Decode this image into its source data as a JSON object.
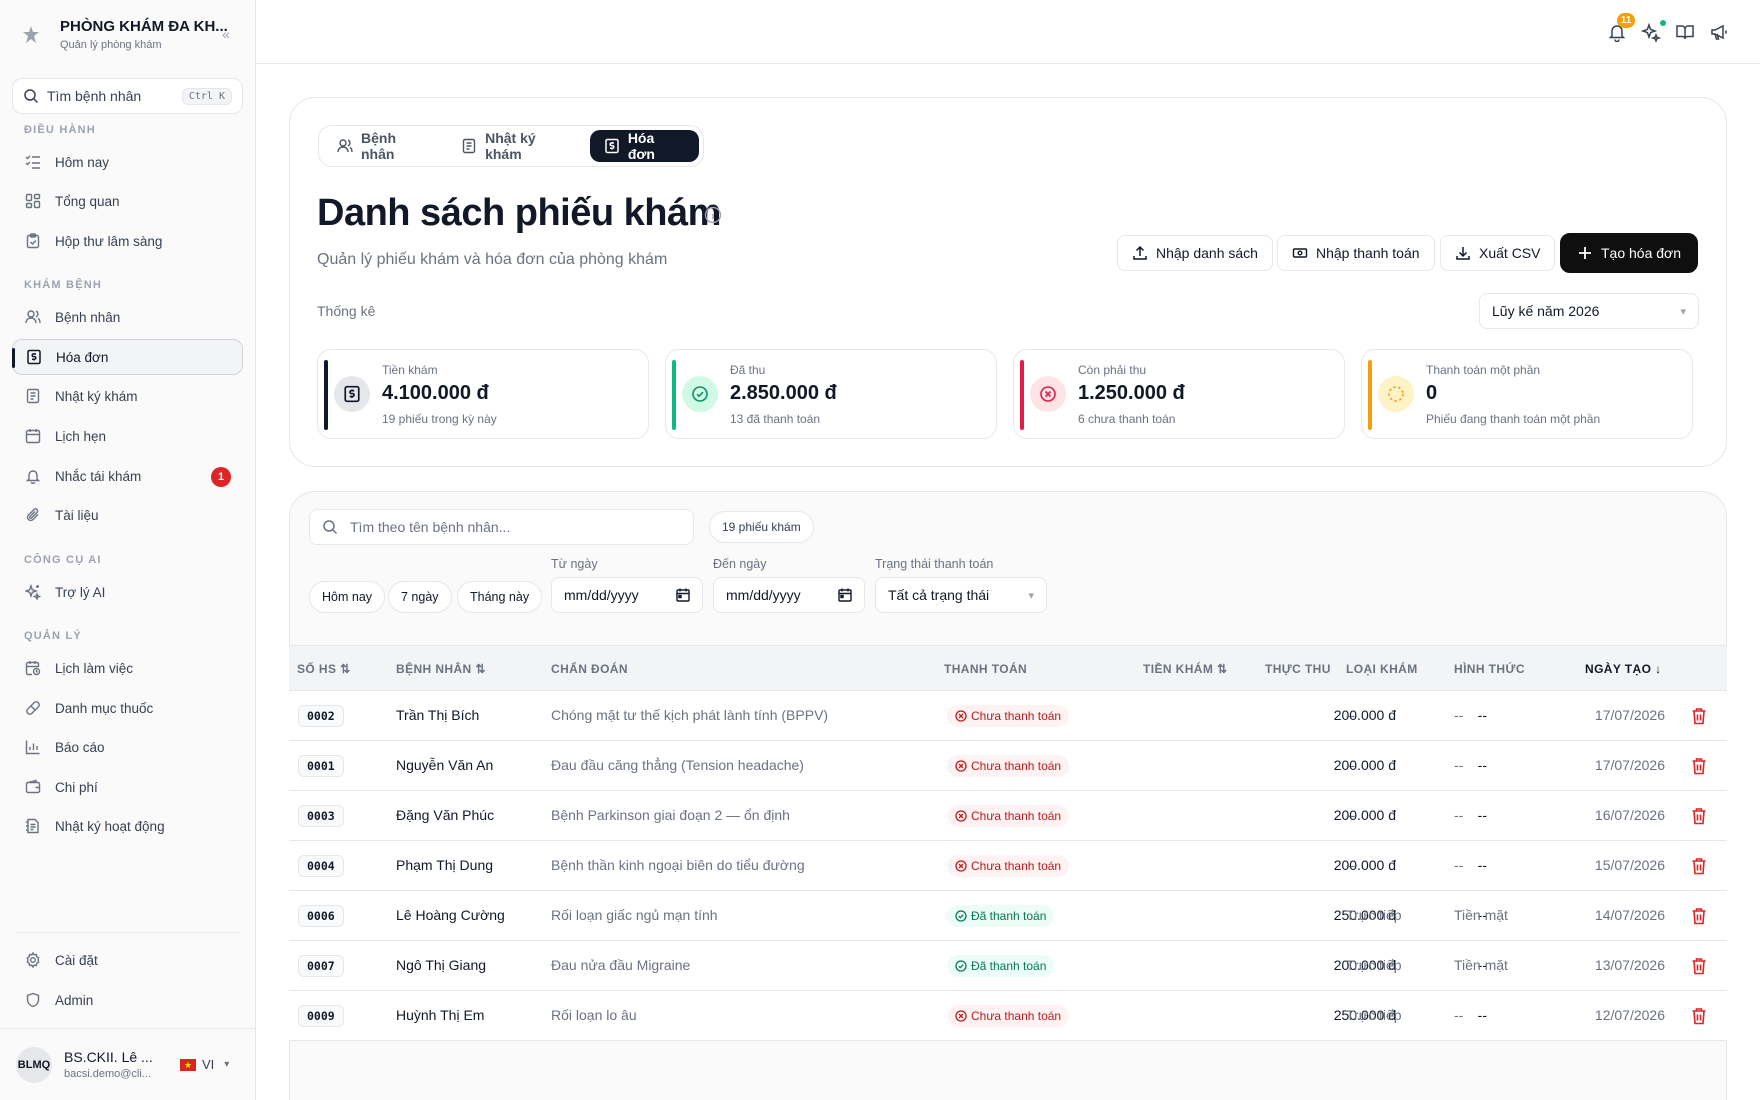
{
  "sidebar": {
    "brand_name": "PHÒNG KHÁM ĐA KH...",
    "brand_sub": "Quản lý phòng khám",
    "search_label": "Tìm bệnh nhân",
    "search_kbd": "Ctrl K",
    "sections": {
      "dieu_hanh": "ĐIỀU HÀNH",
      "kham_benh": "KHÁM BỆNH",
      "cong_cu_ai": "CÔNG CỤ AI",
      "quan_ly": "QUẢN LÝ"
    },
    "items": {
      "hom_nay": "Hôm nay",
      "tong_quan": "Tổng quan",
      "hop_thu": "Hộp thư lâm sàng",
      "benh_nhan": "Bệnh nhân",
      "hoa_don": "Hóa đơn",
      "nhat_ky_kham": "Nhật ký khám",
      "lich_hen": "Lịch hẹn",
      "nhac_tai_kham": "Nhắc tái khám",
      "nhac_tai_kham_badge": "1",
      "tai_lieu": "Tài liệu",
      "tro_ly_ai": "Trợ lý AI",
      "lich_lam_viec": "Lịch làm việc",
      "danh_muc_thuoc": "Danh mục thuốc",
      "bao_cao": "Báo cáo",
      "chi_phi": "Chi phí",
      "nhat_ky_hoat_dong": "Nhật ký hoạt động",
      "cai_dat": "Cài đặt",
      "admin": "Admin"
    },
    "user": {
      "initials": "BLMQ",
      "name": "BS.CKII. Lê ...",
      "email": "bacsi.demo@cli...",
      "lang": "VI"
    }
  },
  "topbar": {
    "notif_count": "11"
  },
  "header": {
    "tabs": [
      "Bệnh nhân",
      "Nhật ký khám",
      "Hóa đơn"
    ],
    "title": "Danh sách phiếu khám",
    "subtitle": "Quản lý phiếu khám và hóa đơn của phòng khám",
    "buttons": {
      "import_list": "Nhập danh sách",
      "import_payment": "Nhập thanh toán",
      "export_csv": "Xuất CSV",
      "create_invoice": "Tạo hóa đơn"
    },
    "stats_heading": "Thống kê",
    "period": "Lũy kế năm 2026"
  },
  "stats": [
    {
      "label": "Tiền khám",
      "value": "4.100.000 đ",
      "note": "19 phiếu trong kỳ này",
      "color": "#111827"
    },
    {
      "label": "Đã thu",
      "value": "2.850.000 đ",
      "note": "13 đã thanh toán",
      "color": "#10b981"
    },
    {
      "label": "Còn phải thu",
      "value": "1.250.000 đ",
      "note": "6 chưa thanh toán",
      "color": "#e11d48"
    },
    {
      "label": "Thanh toán một phần",
      "value": "0",
      "note": "Phiếu đang thanh toán một phần",
      "color": "#f59e0b"
    }
  ],
  "filters": {
    "search_placeholder": "Tìm theo tên bệnh nhân...",
    "count": "19 phiếu khám",
    "chips": [
      "Hôm nay",
      "7 ngày",
      "Tháng này"
    ],
    "from_label": "Từ ngày",
    "to_label": "Đến ngày",
    "date_placeholder": "mm/dd/yyyy",
    "status_label": "Trạng thái thanh toán",
    "status_value": "Tất cả trạng thái"
  },
  "table": {
    "headers": {
      "so_hs": "SỐ HS",
      "benh_nhan": "BỆNH NHÂN",
      "chan_doan": "CHẨN ĐOÁN",
      "thanh_toan": "THANH TOÁN",
      "tien_kham": "TIỀN KHÁM",
      "thuc_thu": "THỰC THU",
      "loai_kham": "LOẠI KHÁM",
      "hinh_thuc": "HÌNH THỨC",
      "ngay_tao": "NGÀY TẠO"
    },
    "rows": [
      {
        "code": "0002",
        "patient": "Trần Thị Bích",
        "diagnosis": "Chóng mặt tư thế kịch phát lành tính (BPPV)",
        "status": "Chưa thanh toán",
        "paid": false,
        "fee": "200.000 đ",
        "received": "--",
        "type": "--",
        "method": "--",
        "date": "17/07/2026"
      },
      {
        "code": "0001",
        "patient": "Nguyễn Văn An",
        "diagnosis": "Đau đầu căng thẳng (Tension headache)",
        "status": "Chưa thanh toán",
        "paid": false,
        "fee": "200.000 đ",
        "received": "--",
        "type": "--",
        "method": "--",
        "date": "17/07/2026"
      },
      {
        "code": "0003",
        "patient": "Đặng Văn Phúc",
        "diagnosis": "Bệnh Parkinson giai đoạn 2 — ổn định",
        "status": "Chưa thanh toán",
        "paid": false,
        "fee": "200.000 đ",
        "received": "--",
        "type": "--",
        "method": "--",
        "date": "16/07/2026"
      },
      {
        "code": "0004",
        "patient": "Phạm Thị Dung",
        "diagnosis": "Bệnh thần kinh ngoại biên do tiểu đường",
        "status": "Chưa thanh toán",
        "paid": false,
        "fee": "200.000 đ",
        "received": "--",
        "type": "--",
        "method": "--",
        "date": "15/07/2026"
      },
      {
        "code": "0006",
        "patient": "Lê Hoàng Cường",
        "diagnosis": "Rối loạn giấc ngủ mạn tính",
        "status": "Đã thanh toán",
        "paid": true,
        "fee": "250.000 đ",
        "received": "--",
        "type": "Trực tiếp",
        "method": "Tiền mặt",
        "date": "14/07/2026"
      },
      {
        "code": "0007",
        "patient": "Ngô Thị Giang",
        "diagnosis": "Đau nửa đầu Migraine",
        "status": "Đã thanh toán",
        "paid": true,
        "fee": "200.000 đ",
        "received": "--",
        "type": "Trực tiếp",
        "method": "Tiền mặt",
        "date": "13/07/2026"
      },
      {
        "code": "0009",
        "patient": "Huỳnh Thị Em",
        "diagnosis": "Rối loạn lo âu",
        "status": "Chưa thanh toán",
        "paid": false,
        "fee": "250.000 đ",
        "received": "--",
        "type": "Trực tiếp",
        "method": "--",
        "date": "12/07/2026"
      }
    ]
  }
}
